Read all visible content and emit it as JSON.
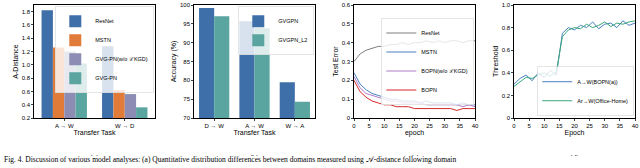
{
  "caption": "Fig. 4.  Discussion of various model analyses: (a) Quantitative distribution differences between domains measured using 𝒜-distance following domain",
  "chart_data": [
    {
      "type": "bar",
      "label": "(a)",
      "x_label": "Transfer Task",
      "y_label": "A-Distance",
      "categories": [
        "A → W",
        "W → D"
      ],
      "series": [
        {
          "name": "ResNet",
          "color": "#3f6fa8",
          "values": [
            1.82,
            1.28
          ]
        },
        {
          "name": "MSTN",
          "color": "#e07b39",
          "values": [
            1.26,
            0.62
          ]
        },
        {
          "name": "GVG-PN(w/o ℒKGD)",
          "color": "#8c8cb4",
          "values": [
            1.2,
            0.56
          ]
        },
        {
          "name": "GVG-PN",
          "color": "#5aa5a0",
          "values": [
            1.02,
            0.36
          ]
        }
      ],
      "ylim": [
        0.2,
        1.9
      ],
      "yticks": [
        0.2,
        0.4,
        0.6,
        0.8,
        {
          "value": 1,
          "label": "1.0"
        },
        1.2,
        1.4,
        1.6,
        1.8
      ],
      "grid": false,
      "legend": "upper right"
    },
    {
      "type": "bar",
      "label": "(b)",
      "x_label": "Transfer Task",
      "y_label": "Accuracy (%)",
      "categories": [
        "D → W",
        "A → W",
        "W → A"
      ],
      "series": [
        {
          "name": "GVGPN",
          "color": "#3f6fa8",
          "values": [
            99.2,
            95.7,
            79.5
          ]
        },
        {
          "name": "GVGPN_L2",
          "color": "#5aa5a0",
          "values": [
            97.0,
            93.9,
            74.3
          ]
        }
      ],
      "ylim": [
        70,
        100
      ],
      "yticks": [
        70,
        75,
        80,
        85,
        90,
        95,
        100
      ],
      "grid": false,
      "legend": "upper right"
    },
    {
      "type": "line",
      "label": "(c)",
      "x_label": "epoch",
      "y_label": "Test Error",
      "x": [
        0,
        2,
        4,
        6,
        8,
        10,
        12,
        14,
        16,
        18,
        20,
        22,
        24,
        26,
        28,
        30,
        32,
        34,
        36,
        38,
        40
      ],
      "series": [
        {
          "name": "ResNet",
          "color": "#7f7f7f",
          "values": [
            0.3,
            0.34,
            0.36,
            0.37,
            0.38,
            0.38,
            0.39,
            0.39,
            0.4,
            0.39,
            0.4,
            0.4,
            0.41,
            0.4,
            0.41,
            0.4,
            0.41,
            0.41,
            0.4,
            0.41,
            0.41
          ]
        },
        {
          "name": "MSTN",
          "color": "#4a7fc1",
          "values": [
            0.24,
            0.18,
            0.15,
            0.13,
            0.12,
            0.11,
            0.1,
            0.1,
            0.09,
            0.09,
            0.09,
            0.08,
            0.09,
            0.08,
            0.08,
            0.08,
            0.08,
            0.07,
            0.08,
            0.07,
            0.07
          ]
        },
        {
          "name": "BOPN(w/o ℒKGD)",
          "color": "#b07cc6",
          "values": [
            0.22,
            0.16,
            0.13,
            0.12,
            0.11,
            0.1,
            0.09,
            0.09,
            0.08,
            0.08,
            0.08,
            0.08,
            0.07,
            0.07,
            0.07,
            0.07,
            0.07,
            0.07,
            0.06,
            0.07,
            0.06
          ]
        },
        {
          "name": "BOPN",
          "color": "#d62728",
          "values": [
            0.2,
            0.14,
            0.11,
            0.09,
            0.08,
            0.07,
            0.07,
            0.06,
            0.06,
            0.06,
            0.05,
            0.05,
            0.05,
            0.05,
            0.05,
            0.05,
            0.05,
            0.04,
            0.05,
            0.05,
            0.05
          ]
        }
      ],
      "xlim": [
        0,
        40
      ],
      "xticks": [
        0,
        5,
        10,
        15,
        20,
        25,
        30,
        35,
        40
      ],
      "ylim": [
        0,
        0.6
      ],
      "yticks": [
        0,
        0.1,
        0.2,
        0.3,
        0.4,
        0.5,
        0.6
      ],
      "grid": false,
      "legend": "center right"
    },
    {
      "type": "line",
      "label": "(d)",
      "x_label": "Epoch",
      "y_label": "Threshold",
      "x": [
        0,
        2,
        4,
        6,
        8,
        10,
        12,
        14,
        16,
        18,
        20,
        22,
        24,
        26,
        28,
        30,
        32,
        34,
        36,
        38,
        40
      ],
      "series": [
        {
          "name": "A→W(BOPN(a))",
          "color": "#4a7fc1",
          "values": [
            0.3,
            0.35,
            0.38,
            0.33,
            0.4,
            0.36,
            0.42,
            0.38,
            0.75,
            0.8,
            0.78,
            0.82,
            0.8,
            0.85,
            0.79,
            0.83,
            0.84,
            0.8,
            0.86,
            0.82,
            0.84
          ]
        },
        {
          "name": "Ar→W(Office-Home)",
          "color": "#3aa87a",
          "values": [
            0.28,
            0.32,
            0.36,
            0.35,
            0.38,
            0.4,
            0.37,
            0.41,
            0.72,
            0.78,
            0.8,
            0.79,
            0.83,
            0.8,
            0.82,
            0.85,
            0.81,
            0.84,
            0.83,
            0.85,
            0.86
          ]
        }
      ],
      "xlim": [
        0,
        40
      ],
      "xticks": [
        0,
        5,
        10,
        15,
        20,
        25,
        30,
        35,
        40
      ],
      "ylim": [
        0,
        1
      ],
      "yticks": [
        0,
        0.2,
        0.4,
        0.6,
        0.8,
        {
          "value": 1,
          "label": "1.0"
        }
      ],
      "grid": false,
      "legend": "lower right"
    }
  ]
}
